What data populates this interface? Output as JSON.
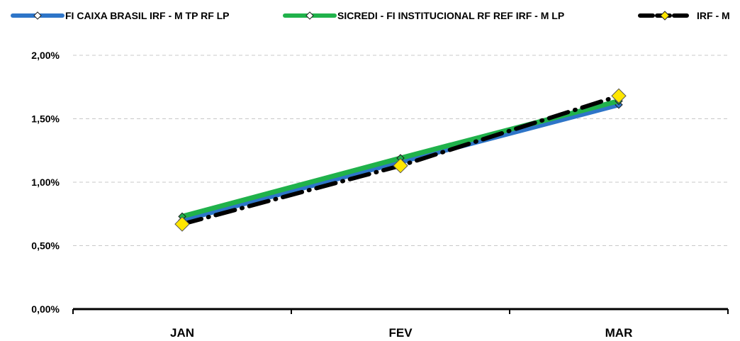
{
  "chart_data": {
    "type": "line",
    "categories": [
      "JAN",
      "FEV",
      "MAR"
    ],
    "series": [
      {
        "name": "FI CAIXA BRASIL IRF - M TP RF LP",
        "values": [
          0.7,
          1.16,
          1.61
        ],
        "color": "#2e75c8",
        "marker": "diamond-small"
      },
      {
        "name": "SICREDI - FI INSTITUCIONAL RF REF IRF - M LP",
        "values": [
          0.73,
          1.19,
          1.64
        ],
        "color": "#20b24b",
        "marker": "diamond-small"
      },
      {
        "name": "IRF - M",
        "values": [
          0.67,
          1.13,
          1.68
        ],
        "color": "#000000",
        "marker": "diamond-large-yellow",
        "dashed": true
      }
    ],
    "y_ticks": [
      "0,00%",
      "0,50%",
      "1,00%",
      "1,50%",
      "2,00%"
    ],
    "ylim": [
      0,
      2.0
    ],
    "grid": true,
    "legend": "top"
  }
}
